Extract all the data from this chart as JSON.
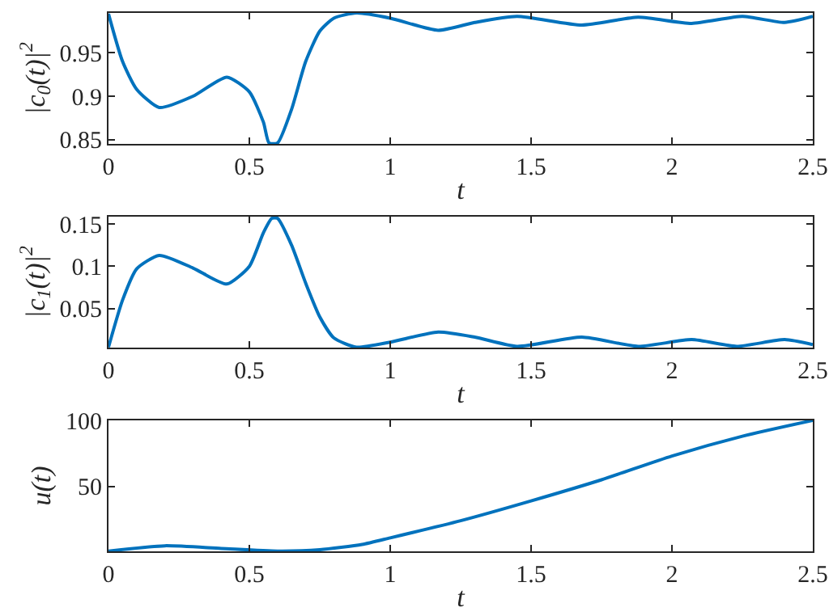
{
  "chart_data": [
    {
      "type": "line",
      "xlabel": "t",
      "ylabel": "|c$_{0}$(t)|$^{2}$",
      "xlim": [
        0,
        2.5
      ],
      "ylim": [
        0.845,
        0.996
      ],
      "xticks": [
        0,
        0.5,
        1,
        1.5,
        2,
        2.5
      ],
      "yticks": [
        0.85,
        0.9,
        0.95
      ],
      "grid": false,
      "x": [
        0,
        0.05,
        0.1,
        0.18,
        0.3,
        0.42,
        0.5,
        0.55,
        0.57,
        0.6,
        0.65,
        0.7,
        0.75,
        0.8,
        0.88,
        1.0,
        1.17,
        1.3,
        1.45,
        1.68,
        1.88,
        2.07,
        2.25,
        2.4,
        2.5
      ],
      "series": [
        {
          "color": "#0072bd",
          "values": [
            0.995,
            0.94,
            0.908,
            0.887,
            0.9,
            0.922,
            0.905,
            0.87,
            0.846,
            0.846,
            0.885,
            0.94,
            0.975,
            0.99,
            0.996,
            0.99,
            0.976,
            0.985,
            0.992,
            0.982,
            0.991,
            0.984,
            0.992,
            0.985,
            0.992
          ]
        }
      ]
    },
    {
      "type": "line",
      "xlabel": "t",
      "ylabel": "|c$_{1}$(t)|$^{2}$",
      "xlim": [
        0,
        2.5
      ],
      "ylim": [
        0.0035,
        0.159
      ],
      "xticks": [
        0,
        0.5,
        1,
        1.5,
        2,
        2.5
      ],
      "yticks": [
        0.05,
        0.1,
        0.15
      ],
      "grid": false,
      "x": [
        0,
        0.05,
        0.1,
        0.18,
        0.3,
        0.42,
        0.5,
        0.55,
        0.58,
        0.6,
        0.65,
        0.7,
        0.75,
        0.8,
        0.88,
        1.0,
        1.17,
        1.3,
        1.45,
        1.68,
        1.88,
        2.07,
        2.23,
        2.4,
        2.5
      ],
      "series": [
        {
          "color": "#0072bd",
          "values": [
            0.004,
            0.06,
            0.097,
            0.113,
            0.098,
            0.079,
            0.1,
            0.14,
            0.157,
            0.157,
            0.125,
            0.08,
            0.04,
            0.015,
            0.004,
            0.01,
            0.022,
            0.016,
            0.005,
            0.016,
            0.005,
            0.013,
            0.005,
            0.013,
            0.007
          ]
        }
      ]
    },
    {
      "type": "line",
      "xlabel": "t",
      "ylabel": "u(t)",
      "xlim": [
        0,
        2.5
      ],
      "ylim": [
        0.8,
        100
      ],
      "xticks": [
        0,
        0.5,
        1,
        1.5,
        2,
        2.5
      ],
      "yticks": [
        50,
        100
      ],
      "grid": false,
      "x": [
        0,
        0.2,
        0.4,
        0.6,
        0.75,
        0.9,
        1.0,
        1.25,
        1.5,
        1.75,
        2.0,
        2.25,
        2.5
      ],
      "series": [
        {
          "color": "#0072bd",
          "values": [
            1,
            5,
            3,
            1,
            2,
            6,
            11,
            24,
            39,
            55,
            73,
            88,
            100
          ]
        }
      ]
    }
  ]
}
